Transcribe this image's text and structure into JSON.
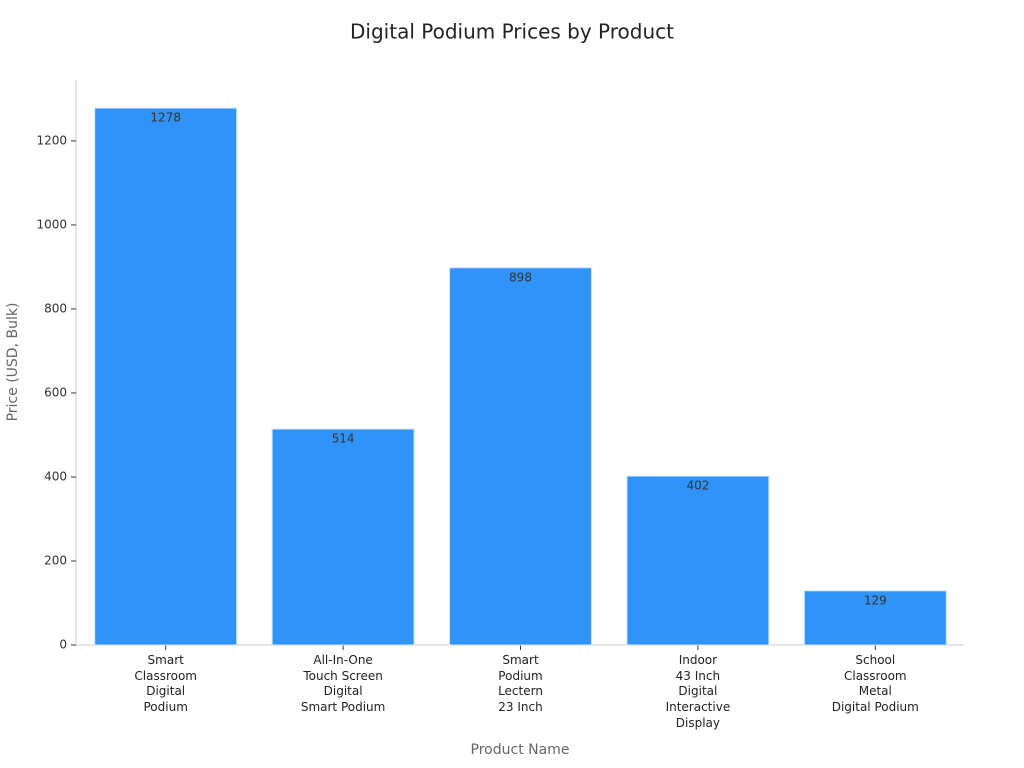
{
  "chart_data": {
    "type": "bar",
    "title": "Digital Podium Prices by Product",
    "x_label": "Product Name",
    "y_label": "Price (USD, Bulk)",
    "categories": [
      "Smart\nClassroom\nDigital\nPodium",
      "All-In-One\nTouch Screen\nDigital\nSmart Podium",
      "Smart\nPodium\nLectern\n23 Inch",
      "Indoor\n43 Inch\nDigital\nInteractive\nDisplay",
      "School\nClassroom\nMetal\nDigital Podium"
    ],
    "values": [
      1278,
      514,
      898,
      402,
      129
    ],
    "color": "#3093f7",
    "ylim": [
      0,
      1345
    ],
    "yticks": [
      0,
      200,
      400,
      600,
      800,
      1000,
      1200
    ],
    "grid": false
  }
}
